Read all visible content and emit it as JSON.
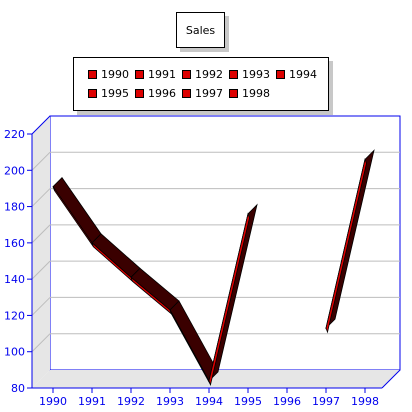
{
  "chart_data": {
    "type": "line",
    "title": "Sales",
    "categories": [
      "1990",
      "1991",
      "1992",
      "1993",
      "1994",
      "1995",
      "1996",
      "1997",
      "1998"
    ],
    "series": [
      {
        "values": [
          191,
          160,
          141,
          123,
          84,
          176,
          null,
          113,
          206
        ]
      }
    ],
    "legend": [
      "1990",
      "1991",
      "1992",
      "1993",
      "1994",
      "1995",
      "1996",
      "1997",
      "1998"
    ],
    "legend_position": "top",
    "ylim": [
      80,
      220
    ],
    "yticks": [
      "80",
      "100",
      "120",
      "140",
      "160",
      "180",
      "200",
      "220"
    ],
    "grid": true,
    "style": "3d-ribbon"
  },
  "colors": {
    "ribbon_front": "#e00000",
    "ribbon_top": "#3a0000",
    "axis": "#0000ee",
    "grid": "#bdbdbd",
    "side_wall": "#e6e6e6"
  }
}
